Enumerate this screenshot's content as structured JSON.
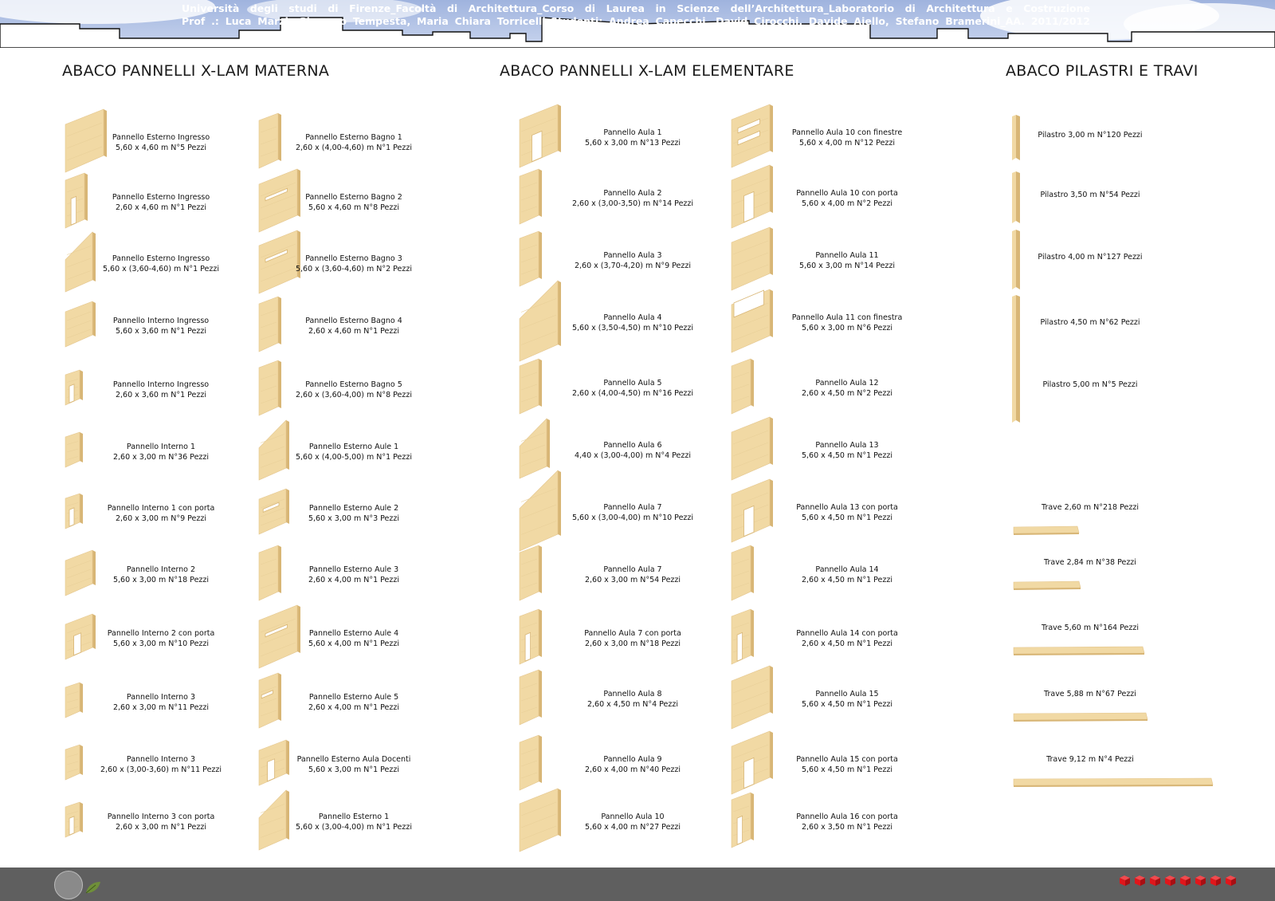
{
  "titles": {
    "materna": "ABACO PANNELLI X-LAM MATERNA",
    "elementare": "ABACO PANNELLI X-LAM ELEMENTARE",
    "pilastri": "ABACO PILASTRI E TRAVI"
  },
  "materna_left": [
    {
      "name": "Pannello Esterno Ingresso",
      "dims": "5,60 x 4,60 m  N°5 Pezzi",
      "shape": "wide",
      "opening": "none"
    },
    {
      "name": "Pannello Esterno Ingresso",
      "dims": "2,60 x 4,60 m  N°1 Pezzi",
      "shape": "narrow",
      "opening": "door"
    },
    {
      "name": "Pannello Esterno Ingresso",
      "dims": "5,60 x (3,60-4,60) m  N°1 Pezzi",
      "shape": "slope",
      "opening": "none"
    },
    {
      "name": "Pannello Interno Ingresso",
      "dims": "5,60 x 3,60 m  N°1 Pezzi",
      "shape": "wide-low",
      "opening": "none"
    },
    {
      "name": "Pannello Interno Ingresso",
      "dims": "2,60 x 3,60 m  N°1 Pezzi",
      "shape": "narrow-low",
      "opening": "door"
    },
    {
      "name": "Pannello Interno 1",
      "dims": "2,60 x 3,00 m  N°36 Pezzi",
      "shape": "narrow-low",
      "opening": "none"
    },
    {
      "name": "Pannello Interno 1 con porta",
      "dims": "2,60 x 3,00 m  N°9 Pezzi",
      "shape": "narrow-low",
      "opening": "door"
    },
    {
      "name": "Pannello Interno 2",
      "dims": "5,60 x 3,00 m  N°18 Pezzi",
      "shape": "wide-low",
      "opening": "none"
    },
    {
      "name": "Pannello Interno 2 con porta",
      "dims": "5,60 x 3,00 m  N°10 Pezzi",
      "shape": "wide-low",
      "opening": "door"
    },
    {
      "name": "Pannello Interno 3",
      "dims": "2,60 x 3,00 m  N°11 Pezzi",
      "shape": "narrow-low",
      "opening": "none"
    },
    {
      "name": "Pannello Interno 3",
      "dims": "2,60 x (3,00-3,60) m  N°11 Pezzi",
      "shape": "narrow-low",
      "opening": "none"
    },
    {
      "name": "Pannello Interno 3 con porta",
      "dims": "2,60 x 3,00 m  N°1 Pezzi",
      "shape": "narrow-low",
      "opening": "door"
    }
  ],
  "materna_right": [
    {
      "name": "Pannello Esterno Bagno 1",
      "dims": "2,60 x (4,00-4,60) m  N°1 Pezzi",
      "shape": "narrow",
      "opening": "none"
    },
    {
      "name": "Pannello Esterno Bagno 2",
      "dims": "5,60 x 4,60 m  N°8 Pezzi",
      "shape": "wide",
      "opening": "window"
    },
    {
      "name": "Pannello Esterno Bagno 3",
      "dims": "5,60 x (3,60-4,60) m  N°2 Pezzi",
      "shape": "wide",
      "opening": "window"
    },
    {
      "name": "Pannello Esterno Bagno 4",
      "dims": "2,60 x 4,60 m  N°1 Pezzi",
      "shape": "narrow",
      "opening": "none"
    },
    {
      "name": "Pannello Esterno Bagno 5",
      "dims": "2,60 x (3,60-4,00) m  N°8 Pezzi",
      "shape": "narrow",
      "opening": "none"
    },
    {
      "name": "Pannello Esterno Aule 1",
      "dims": "5,60 x (4,00-5,00) m  N°1 Pezzi",
      "shape": "slope",
      "opening": "none"
    },
    {
      "name": "Pannello Esterno Aule 2",
      "dims": "5,60 x 3,00 m  N°3 Pezzi",
      "shape": "wide-low",
      "opening": "window"
    },
    {
      "name": "Pannello Esterno Aule 3",
      "dims": "2,60 x 4,00 m  N°1 Pezzi",
      "shape": "narrow",
      "opening": "none"
    },
    {
      "name": "Pannello Esterno Aule 4",
      "dims": "5,60 x 4,00 m  N°1 Pezzi",
      "shape": "wide",
      "opening": "window"
    },
    {
      "name": "Pannello Esterno Aule 5",
      "dims": "2,60 x 4,00 m  N°1 Pezzi",
      "shape": "narrow",
      "opening": "window"
    },
    {
      "name": "Pannello Esterno Aula Docenti",
      "dims": "5,60 x 3,00 m  N°1 Pezzi",
      "shape": "wide-low",
      "opening": "door"
    },
    {
      "name": "Pannello Esterno 1",
      "dims": "5,60 x (3,00-4,00) m  N°1 Pezzi",
      "shape": "slope",
      "opening": "none"
    }
  ],
  "elementare_left": [
    {
      "name": "Pannello Aula 1",
      "dims": "5,60 x 3,00 m  N°13 Pezzi",
      "shape": "wide",
      "opening": "door"
    },
    {
      "name": "Pannello Aula 2",
      "dims": "2,60 x (3,00-3,50) m  N°14 Pezzi",
      "shape": "narrow",
      "opening": "none"
    },
    {
      "name": "Pannello Aula 3",
      "dims": "2,60 x (3,70-4,20) m  N°9 Pezzi",
      "shape": "narrow",
      "opening": "none"
    },
    {
      "name": "Pannello Aula 4",
      "dims": "5,60 x (3,50-4,50) m  N°10 Pezzi",
      "shape": "slope-tall",
      "opening": "none"
    },
    {
      "name": "Pannello Aula 5",
      "dims": "2,60 x (4,00-4,50) m  N°16 Pezzi",
      "shape": "narrow",
      "opening": "none"
    },
    {
      "name": "Pannello Aula 6",
      "dims": "4,40 x (3,00-4,00) m  N°4 Pezzi",
      "shape": "slope",
      "opening": "none"
    },
    {
      "name": "Pannello Aula 7",
      "dims": "5,60 x (3,00-4,00) m  N°10 Pezzi",
      "shape": "slope-tall",
      "opening": "none"
    },
    {
      "name": "Pannello Aula 7",
      "dims": "2,60 x 3,00 m  N°54 Pezzi",
      "shape": "narrow",
      "opening": "none"
    },
    {
      "name": "Pannello Aula 7 con porta",
      "dims": "2,60 x 3,00 m  N°18 Pezzi",
      "shape": "narrow",
      "opening": "door"
    },
    {
      "name": "Pannello Aula 8",
      "dims": "2,60 x 4,50 m  N°4 Pezzi",
      "shape": "narrow",
      "opening": "none"
    },
    {
      "name": "Pannello Aula 9",
      "dims": "2,60 x 4,00 m  N°40 Pezzi",
      "shape": "narrow",
      "opening": "none"
    },
    {
      "name": "Pannello Aula 10",
      "dims": "5,60 x 4,00 m  N°27 Pezzi",
      "shape": "wide",
      "opening": "none"
    }
  ],
  "elementare_right": [
    {
      "name": "Pannello Aula 10 con finestre",
      "dims": "5,60 x 4,00 m  N°12 Pezzi",
      "shape": "wide",
      "opening": "windows"
    },
    {
      "name": "Pannello Aula 10 con porta",
      "dims": "5,60 x 4,00 m  N°2 Pezzi",
      "shape": "wide",
      "opening": "door"
    },
    {
      "name": "Pannello Aula 11",
      "dims": "5,60 x 3,00 m  N°14 Pezzi",
      "shape": "wide",
      "opening": "none"
    },
    {
      "name": "Pannello Aula 11 con finestra",
      "dims": "5,60 x 3,00 m  N°6 Pezzi",
      "shape": "wide",
      "opening": "topcut"
    },
    {
      "name": "Pannello Aula 12",
      "dims": "2,60 x 4,50 m  N°2 Pezzi",
      "shape": "narrow",
      "opening": "none"
    },
    {
      "name": "Pannello Aula 13",
      "dims": "5,60 x 4,50 m  N°1 Pezzi",
      "shape": "wide",
      "opening": "none"
    },
    {
      "name": "Pannello Aula 13 con porta",
      "dims": "5,60 x 4,50 m  N°1 Pezzi",
      "shape": "wide",
      "opening": "door"
    },
    {
      "name": "Pannello Aula 14",
      "dims": "2,60 x 4,50 m  N°1 Pezzi",
      "shape": "narrow",
      "opening": "none"
    },
    {
      "name": "Pannello Aula 14 con porta",
      "dims": "2,60 x 4,50 m  N°1 Pezzi",
      "shape": "narrow",
      "opening": "door"
    },
    {
      "name": "Pannello Aula 15",
      "dims": "5,60 x 4,50 m  N°1 Pezzi",
      "shape": "wide",
      "opening": "none"
    },
    {
      "name": "Pannello Aula 15 con porta",
      "dims": "5,60 x 4,50 m  N°1 Pezzi",
      "shape": "wide",
      "opening": "door"
    },
    {
      "name": "Pannello Aula 16 con porta",
      "dims": "2,60 x 3,50 m  N°1 Pezzi",
      "shape": "narrow",
      "opening": "door"
    }
  ],
  "pilastri": [
    {
      "name": "Pilastro 3,00 m  N°120 Pezzi"
    },
    {
      "name": "Pilastro 3,50 m  N°54 Pezzi"
    },
    {
      "name": "Pilastro 4,00 m  N°127 Pezzi"
    },
    {
      "name": "Pilastro 4,50 m  N°62 Pezzi"
    },
    {
      "name": "Pilastro 5,00 m  N°5 Pezzi"
    }
  ],
  "travi": [
    {
      "name": "Trave 2,60 m  N°218 Pezzi"
    },
    {
      "name": "Trave 2,84 m  N°38 Pezzi"
    },
    {
      "name": "Trave 5,60 m  N°164 Pezzi"
    },
    {
      "name": "Trave 5,88 m  N°67 Pezzi"
    },
    {
      "name": "Trave 9,12 m  N°4 Pezzi"
    }
  ],
  "footer": {
    "line1": "Università degli studi di Firenze_Facoltà di Architettura_Corso di Laurea in Scienze dell’Architettura_Laboratorio di Architettura e Costruzione",
    "line2": "Prof .: Luca Marzi, Giacomo Tempesta, Maria Chiara Torricelli_Studenti: Andrea Capecchi, David Cirocchi, Davide Aiello, Stefano Bramerini_AA. 2011/2012"
  },
  "colors": {
    "wood": "#f1d9a4",
    "wood_side": "#d8b676",
    "sky": "#bccbe8",
    "footer": "#5f5f5f",
    "cube": "#e0161b"
  }
}
